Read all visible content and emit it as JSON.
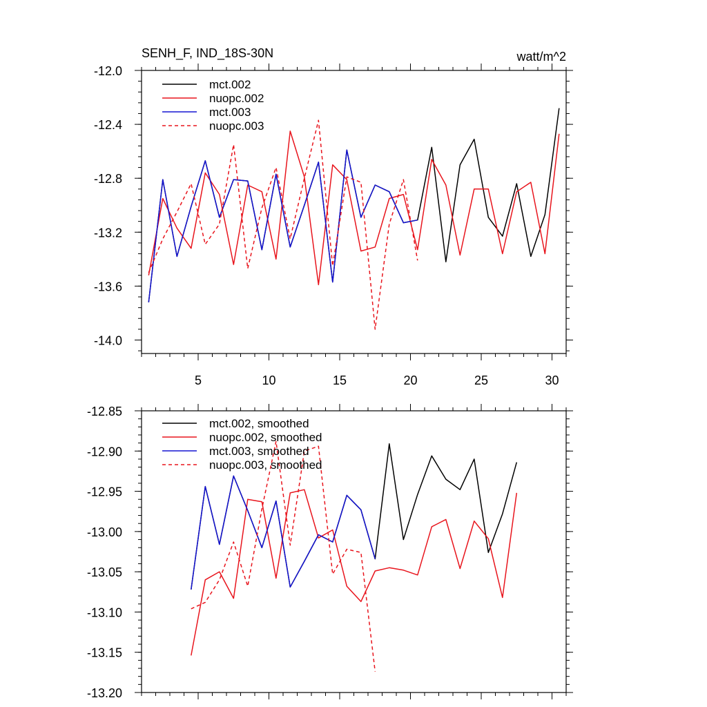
{
  "header": {
    "left_title": "SENH_F, IND_18S-30N",
    "right_title": "watt/m^2"
  },
  "colors": {
    "mct_002": "#000000",
    "nuopc_002": "#e8141c",
    "mct_003": "#1414d2",
    "nuopc_003": "#e8141c"
  },
  "chart_data": [
    {
      "type": "line",
      "title": "SENH_F, IND_18S-30N",
      "units": "watt/m^2",
      "xlabel": "",
      "ylabel": "",
      "xlim": [
        1,
        31
      ],
      "ylim": [
        -14.1,
        -12.0
      ],
      "xticks": [
        5,
        10,
        15,
        20,
        25,
        30
      ],
      "yticks": [
        -12.0,
        -12.4,
        -12.8,
        -13.2,
        -13.6,
        -14.0
      ],
      "ytick_labels": [
        "-12.0",
        "-12.4",
        "-12.8",
        "-13.2",
        "-13.6",
        "-14.0"
      ],
      "xtick_labels": [
        "5",
        "10",
        "15",
        "20",
        "25",
        "30"
      ],
      "grid": false,
      "legend_position": "top-left",
      "series": [
        {
          "name": "mct.002",
          "color": "#000000",
          "dash": "solid",
          "x": [
            1.5,
            2.5,
            3.5,
            4.5,
            5.5,
            6.5,
            7.5,
            8.5,
            9.5,
            10.5,
            11.5,
            12.5,
            13.5,
            14.5,
            15.5,
            16.5,
            17.5,
            18.5,
            19.5,
            20.5,
            21.5,
            22.5,
            23.5,
            24.5,
            25.5,
            26.5,
            27.5,
            28.5,
            29.5,
            30.5
          ],
          "values": [
            -13.72,
            -12.81,
            -13.38,
            -13.01,
            -12.67,
            -13.09,
            -12.81,
            -12.82,
            -13.33,
            -12.77,
            -13.31,
            -13.0,
            -12.68,
            -13.57,
            -12.59,
            -13.09,
            -12.85,
            -12.9,
            -13.13,
            -13.11,
            -12.57,
            -13.42,
            -12.7,
            -12.51,
            -13.09,
            -13.23,
            -12.84,
            -13.38,
            -13.07,
            -12.28
          ]
        },
        {
          "name": "nuopc.002",
          "color": "#e8141c",
          "dash": "solid",
          "x": [
            1.5,
            2.5,
            3.5,
            4.5,
            5.5,
            6.5,
            7.5,
            8.5,
            9.5,
            10.5,
            11.5,
            12.5,
            13.5,
            14.5,
            15.5,
            16.5,
            17.5,
            18.5,
            19.5,
            20.5,
            21.5,
            22.5,
            23.5,
            24.5,
            25.5,
            26.5,
            27.5,
            28.5,
            29.5,
            30.5
          ],
          "values": [
            -13.52,
            -12.95,
            -13.17,
            -13.32,
            -12.76,
            -12.92,
            -13.44,
            -12.85,
            -12.9,
            -13.4,
            -12.45,
            -12.79,
            -13.59,
            -12.7,
            -12.81,
            -13.34,
            -13.31,
            -12.95,
            -12.92,
            -13.33,
            -12.66,
            -12.85,
            -13.37,
            -12.88,
            -12.88,
            -13.36,
            -12.9,
            -12.83,
            -13.36,
            -12.47
          ]
        },
        {
          "name": "mct.003",
          "color": "#1414d2",
          "dash": "solid",
          "x": [
            1.5,
            2.5,
            3.5,
            4.5,
            5.5,
            6.5,
            7.5,
            8.5,
            9.5,
            10.5,
            11.5,
            12.5,
            13.5,
            14.5,
            15.5,
            16.5,
            17.5,
            18.5,
            19.5,
            20.5
          ],
          "values": [
            -13.72,
            -12.81,
            -13.38,
            -13.01,
            -12.67,
            -13.09,
            -12.81,
            -12.82,
            -13.33,
            -12.77,
            -13.31,
            -13.0,
            -12.68,
            -13.57,
            -12.59,
            -13.09,
            -12.85,
            -12.9,
            -13.13,
            -13.11
          ]
        },
        {
          "name": "nuopc.003",
          "color": "#e8141c",
          "dash": "dashed",
          "x": [
            1.5,
            2.5,
            3.5,
            4.5,
            5.5,
            6.5,
            7.5,
            8.5,
            9.5,
            10.5,
            11.5,
            12.5,
            13.5,
            14.5,
            15.5,
            16.5,
            17.5,
            18.5,
            19.5,
            20.5
          ],
          "values": [
            -13.5,
            -13.25,
            -13.05,
            -12.84,
            -13.29,
            -13.14,
            -12.55,
            -13.47,
            -13.02,
            -12.72,
            -13.25,
            -12.8,
            -12.37,
            -13.45,
            -12.79,
            -12.83,
            -13.92,
            -13.14,
            -12.81,
            -13.41
          ]
        }
      ]
    },
    {
      "type": "line",
      "title": "",
      "xlabel": "",
      "ylabel": "",
      "xlim": [
        1,
        31
      ],
      "ylim": [
        -13.2,
        -12.85
      ],
      "xticks": [
        5,
        10,
        15,
        20,
        25,
        30
      ],
      "yticks": [
        -12.85,
        -12.9,
        -12.95,
        -13.0,
        -13.05,
        -13.1,
        -13.15,
        -13.2
      ],
      "ytick_labels": [
        "-12.85",
        "-12.90",
        "-12.95",
        "-13.00",
        "-13.05",
        "-13.10",
        "-13.15",
        "-13.20"
      ],
      "grid": false,
      "legend_position": "top-left",
      "series": [
        {
          "name": "mct.002, smoothed",
          "color": "#000000",
          "dash": "solid",
          "x": [
            4.5,
            5.5,
            6.5,
            7.5,
            8.5,
            9.5,
            10.5,
            11.5,
            12.5,
            13.5,
            14.5,
            15.5,
            16.5,
            17.5,
            18.5,
            19.5,
            20.5,
            21.5,
            22.5,
            23.5,
            24.5,
            25.5,
            26.5,
            27.5
          ],
          "values": [
            -13.072,
            -12.944,
            -13.016,
            -12.931,
            -12.974,
            -13.02,
            -12.962,
            -13.069,
            -13.037,
            -13.004,
            -13.013,
            -12.955,
            -12.973,
            -13.034,
            -12.891,
            -13.01,
            -12.954,
            -12.906,
            -12.935,
            -12.948,
            -12.91,
            -13.026,
            -12.978,
            -12.914
          ]
        },
        {
          "name": "nuopc.002, smoothed",
          "color": "#e8141c",
          "dash": "solid",
          "x": [
            4.5,
            5.5,
            6.5,
            7.5,
            8.5,
            9.5,
            10.5,
            11.5,
            12.5,
            13.5,
            14.5,
            15.5,
            16.5,
            17.5,
            18.5,
            19.5,
            20.5,
            21.5,
            22.5,
            23.5,
            24.5,
            25.5,
            26.5,
            27.5
          ],
          "values": [
            -13.154,
            -13.06,
            -13.05,
            -13.083,
            -12.96,
            -12.963,
            -13.058,
            -12.952,
            -12.948,
            -13.008,
            -12.998,
            -13.068,
            -13.087,
            -13.049,
            -13.045,
            -13.048,
            -13.054,
            -12.994,
            -12.985,
            -13.046,
            -12.987,
            -13.009,
            -13.082,
            -12.952
          ]
        },
        {
          "name": "mct.003, smoothed",
          "color": "#1414d2",
          "dash": "solid",
          "x": [
            4.5,
            5.5,
            6.5,
            7.5,
            8.5,
            9.5,
            10.5,
            11.5,
            12.5,
            13.5,
            14.5,
            15.5,
            16.5,
            17.5
          ],
          "values": [
            -13.072,
            -12.944,
            -13.016,
            -12.931,
            -12.974,
            -13.02,
            -12.962,
            -13.069,
            -13.037,
            -13.004,
            -13.013,
            -12.955,
            -12.973,
            -13.034
          ]
        },
        {
          "name": "nuopc.003, smoothed",
          "color": "#e8141c",
          "dash": "dashed",
          "x": [
            4.5,
            5.5,
            6.5,
            7.5,
            8.5,
            9.5,
            10.5,
            11.5,
            12.5,
            13.5,
            14.5,
            15.5,
            16.5,
            17.5
          ],
          "values": [
            -13.096,
            -13.088,
            -13.06,
            -13.013,
            -13.068,
            -12.972,
            -12.888,
            -13.017,
            -12.9,
            -12.894,
            -13.053,
            -13.022,
            -13.026,
            -13.174
          ]
        }
      ]
    }
  ]
}
